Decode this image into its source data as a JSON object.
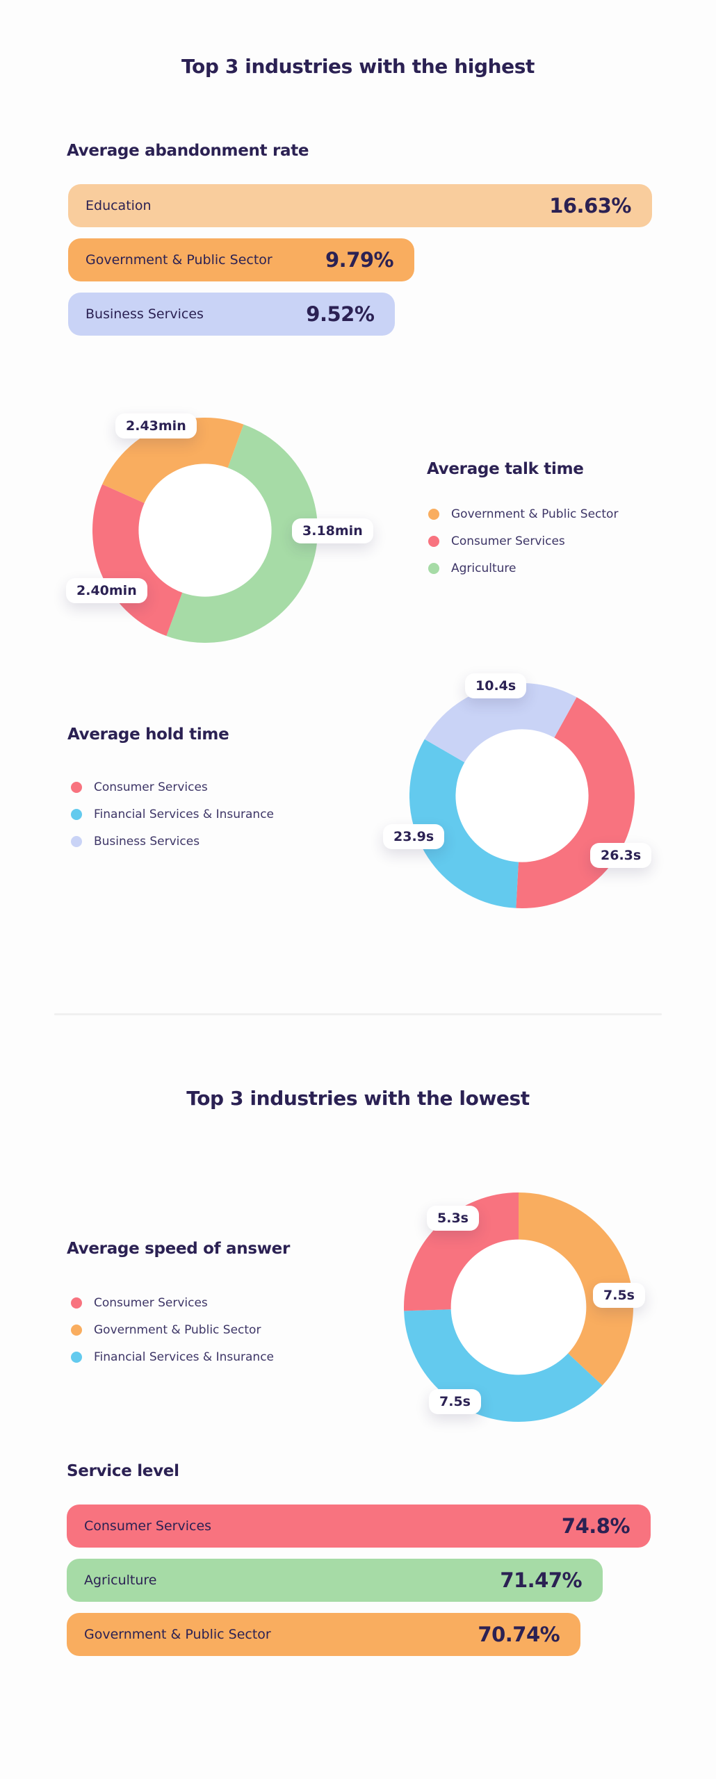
{
  "sections": {
    "highest_title": "Top 3 industries with the highest",
    "lowest_title": "Top 3 industries with the lowest"
  },
  "theme": {
    "background": "#FDFDFD",
    "text_dark": "#2B2153",
    "text_body": "#3D3566",
    "divider": "#F0F0F0",
    "pill_bg": "#FFFFFF"
  },
  "chart_data": [
    {
      "type": "bar",
      "title": "Average abandonment rate",
      "orientation": "horizontal",
      "unit": "%",
      "categories": [
        "Education",
        "Government & Public Sector",
        "Business Services"
      ],
      "values": [
        16.63,
        9.79,
        9.52
      ],
      "value_labels": [
        "16.63%",
        "9.79%",
        "9.52%"
      ],
      "bar_colors": [
        "#F9CD9D",
        "#F9AD5F",
        "#C9D3F6"
      ],
      "bar_width_pct": [
        100,
        59.3,
        56.0
      ]
    },
    {
      "type": "pie",
      "title": "Average talk time",
      "donut": true,
      "unit": "min",
      "start_angle": 20,
      "legend_position": "right",
      "segments": [
        {
          "label": "Agriculture",
          "value": 3.18,
          "display": "3.18min",
          "color": "#A6DBA6",
          "sweep_angle": 180
        },
        {
          "label": "Consumer Services",
          "value": 2.4,
          "display": "2.40min",
          "color": "#F8737F",
          "sweep_angle": 94
        },
        {
          "label": "Government & Public Sector",
          "value": 2.43,
          "display": "2.43min",
          "color": "#F9AD5F",
          "sweep_angle": 86
        }
      ],
      "legend": [
        "Government & Public Sector",
        "Consumer Services",
        "Agriculture"
      ]
    },
    {
      "type": "pie",
      "title": "Average hold time",
      "donut": true,
      "unit": "s",
      "start_angle": 29,
      "legend_position": "left",
      "segments": [
        {
          "label": "Consumer Services",
          "value": 26.3,
          "display": "26.3s",
          "color": "#F8737F",
          "sweep_angle": 154
        },
        {
          "label": "Financial Services & Insurance",
          "value": 23.9,
          "display": "23.9s",
          "color": "#63CAEE",
          "sweep_angle": 117
        },
        {
          "label": "Business Services",
          "value": 10.4,
          "display": "10.4s",
          "color": "#C9D3F6",
          "sweep_angle": 89
        }
      ],
      "legend": [
        "Consumer Services",
        "Financial Services & Insurance",
        "Business Services"
      ]
    },
    {
      "type": "pie",
      "title": "Average speed of answer",
      "donut": true,
      "unit": "s",
      "start_angle": 0,
      "legend_position": "left",
      "segments": [
        {
          "label": "Government & Public Sector",
          "value": 7.5,
          "display": "7.5s",
          "color": "#F9AD5F",
          "sweep_angle": 133
        },
        {
          "label": "Financial Services & Insurance",
          "value": 7.5,
          "display": "7.5s",
          "color": "#63CAEE",
          "sweep_angle": 135
        },
        {
          "label": "Consumer Services",
          "value": 5.3,
          "display": "5.3s",
          "color": "#F8737F",
          "sweep_angle": 92
        }
      ],
      "legend": [
        "Consumer Services",
        "Government & Public Sector",
        "Financial Services & Insurance"
      ]
    },
    {
      "type": "bar",
      "title": "Service level",
      "orientation": "horizontal",
      "unit": "%",
      "categories": [
        "Consumer Services",
        "Agriculture",
        "Government & Public Sector"
      ],
      "values": [
        74.8,
        71.47,
        70.74
      ],
      "value_labels": [
        "74.8%",
        "71.47%",
        "70.74%"
      ],
      "bar_colors": [
        "#F8737F",
        "#A6DBA6",
        "#F9AD5F"
      ],
      "bar_width_pct": [
        100,
        91.8,
        88.0
      ]
    }
  ]
}
